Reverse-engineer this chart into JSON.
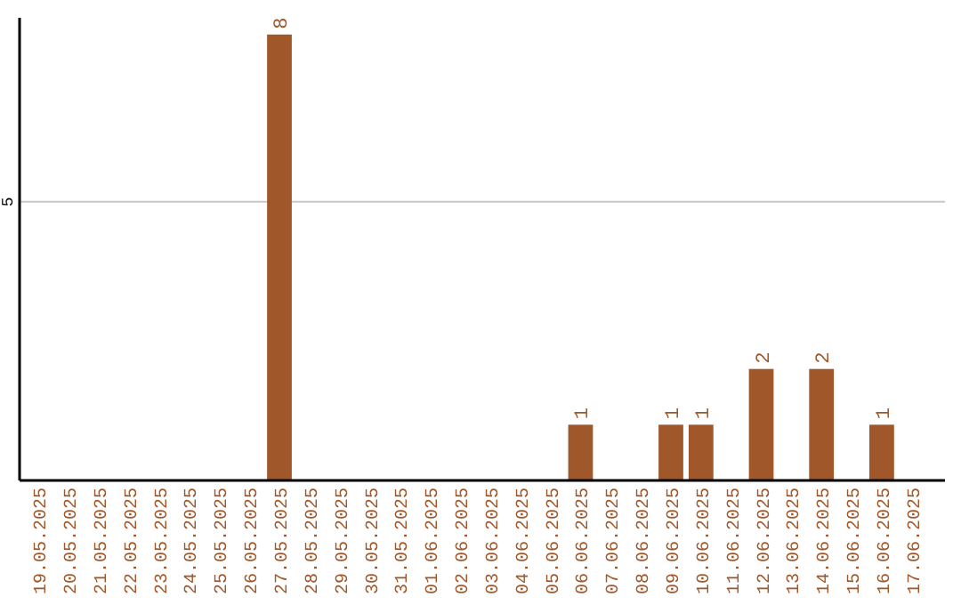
{
  "chart_data": {
    "type": "bar",
    "categories": [
      "19.05.2025",
      "20.05.2025",
      "21.05.2025",
      "22.05.2025",
      "23.05.2025",
      "24.05.2025",
      "25.05.2025",
      "26.05.2025",
      "27.05.2025",
      "28.05.2025",
      "29.05.2025",
      "30.05.2025",
      "31.05.2025",
      "01.06.2025",
      "02.06.2025",
      "03.06.2025",
      "04.06.2025",
      "05.06.2025",
      "06.06.2025",
      "07.06.2025",
      "08.06.2025",
      "09.06.2025",
      "10.06.2025",
      "11.06.2025",
      "12.06.2025",
      "13.06.2025",
      "14.06.2025",
      "15.06.2025",
      "16.06.2025",
      "17.06.2025"
    ],
    "values": [
      0,
      0,
      0,
      0,
      0,
      0,
      0,
      0,
      8,
      0,
      0,
      0,
      0,
      0,
      0,
      0,
      0,
      0,
      1,
      0,
      0,
      1,
      1,
      0,
      2,
      0,
      2,
      0,
      1,
      0
    ],
    "value_labels": [
      null,
      null,
      null,
      null,
      null,
      null,
      null,
      null,
      "8",
      null,
      null,
      null,
      null,
      null,
      null,
      null,
      null,
      null,
      "1",
      null,
      null,
      "1",
      "1",
      null,
      "2",
      null,
      "2",
      null,
      "1",
      null
    ],
    "color": "#a0572a",
    "ylim": [
      0,
      8.3
    ],
    "yticks": [
      5
    ],
    "grid": "y"
  }
}
